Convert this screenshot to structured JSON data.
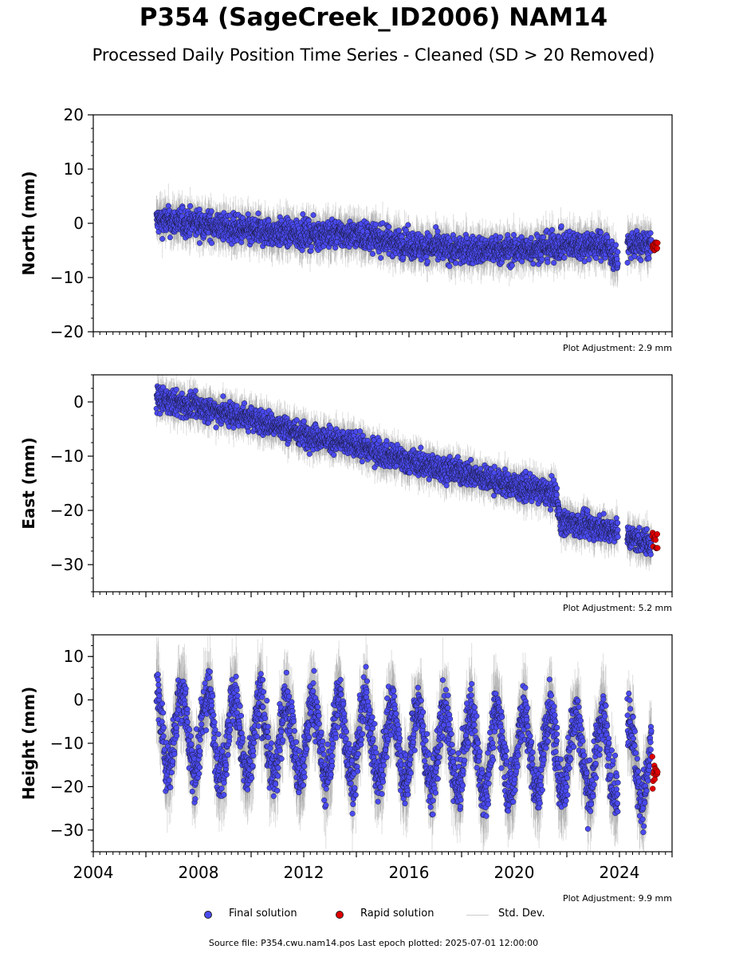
{
  "figure": {
    "title": "P354 (SageCreek_ID2006) NAM14",
    "subtitle": "Processed Daily Position Time Series - Cleaned (SD > 20 Removed)",
    "source_note": "Source file: P354.cwu.nam14.pos  Last epoch plotted: 2025-07-01 12:00:00"
  },
  "legend": [
    {
      "label": "Final solution",
      "kind": "dot",
      "color": "#4a4af0"
    },
    {
      "label": "Rapid solution",
      "kind": "dot",
      "color": "#e00000"
    },
    {
      "label": "Std. Dev.",
      "kind": "line",
      "color": "#cccccc"
    }
  ],
  "chart_data": [
    {
      "type": "scatter",
      "ylabel": "North (mm)",
      "xlim": [
        2004,
        2026
      ],
      "ylim": [
        -20,
        20
      ],
      "yticks": [
        20,
        10,
        0,
        -10,
        -20
      ],
      "xticks": [
        2004,
        2008,
        2012,
        2016,
        2020,
        2024
      ],
      "show_xtick_labels": false,
      "adjustment": "Plot Adjustment: 2.9 mm",
      "final_colour": "#4a4af0",
      "rapid_colour": "#e00000",
      "final_trend": [
        [
          2006.4,
          0.5
        ],
        [
          2008.0,
          0
        ],
        [
          2010.0,
          -1.5
        ],
        [
          2012.0,
          -2
        ],
        [
          2014.0,
          -2
        ],
        [
          2016.0,
          -4
        ],
        [
          2018.0,
          -5
        ],
        [
          2020.0,
          -5
        ],
        [
          2022.0,
          -4
        ],
        [
          2023.5,
          -4
        ],
        [
          2023.9,
          -7
        ]
      ],
      "final_trend_b": [
        [
          2024.3,
          -4
        ],
        [
          2025.2,
          -4
        ]
      ],
      "rapid": {
        "x": [
          2025.25,
          2025.45
        ],
        "y": [
          -3.5,
          -5
        ]
      },
      "noise": 1.8
    },
    {
      "type": "scatter",
      "ylabel": "East (mm)",
      "xlim": [
        2004,
        2026
      ],
      "ylim": [
        -35,
        5
      ],
      "yticks": [
        0,
        -10,
        -20,
        -30
      ],
      "xticks": [
        2004,
        2008,
        2012,
        2016,
        2020,
        2024
      ],
      "show_xtick_labels": false,
      "adjustment": "Plot Adjustment: 5.2 mm",
      "final_colour": "#4a4af0",
      "rapid_colour": "#e00000",
      "final_trend": [
        [
          2006.4,
          0.5
        ],
        [
          2008.0,
          -1
        ],
        [
          2010.0,
          -3
        ],
        [
          2012.0,
          -6
        ],
        [
          2014.0,
          -8
        ],
        [
          2016.0,
          -11
        ],
        [
          2018.0,
          -13
        ],
        [
          2020.0,
          -15.5
        ],
        [
          2021.6,
          -17
        ],
        [
          2021.75,
          -22
        ],
        [
          2023.5,
          -23.5
        ]
      ],
      "final_trend_b": [
        [
          2024.3,
          -25
        ],
        [
          2025.2,
          -26
        ]
      ],
      "rapid": {
        "x": [
          2025.25,
          2025.45
        ],
        "y": [
          -24,
          -27
        ]
      },
      "noise": 1.6
    },
    {
      "type": "scatter",
      "ylabel": "Height (mm)",
      "xlim": [
        2004,
        2026
      ],
      "ylim": [
        -35,
        15
      ],
      "yticks": [
        10,
        0,
        -10,
        -20,
        -30
      ],
      "xticks": [
        2004,
        2008,
        2012,
        2016,
        2020,
        2024
      ],
      "xtick_labels": [
        "2004",
        "2008",
        "2012",
        "2016",
        "2020",
        "2024"
      ],
      "show_xtick_labels": true,
      "adjustment": "Plot Adjustment: 9.9 mm",
      "final_colour": "#4a4af0",
      "rapid_colour": "#e00000",
      "final_trend": [
        [
          2006.4,
          -6
        ],
        [
          2010.0,
          -9
        ],
        [
          2014.0,
          -9
        ],
        [
          2018.0,
          -12
        ],
        [
          2022.0,
          -12
        ],
        [
          2023.5,
          -13
        ]
      ],
      "final_trend_b": [
        [
          2024.3,
          -13
        ],
        [
          2025.2,
          -15
        ]
      ],
      "rapid": {
        "x": [
          2025.25,
          2025.45
        ],
        "y": [
          -13,
          -21
        ]
      },
      "seasonal_amplitude": 9,
      "noise": 4.5
    }
  ]
}
